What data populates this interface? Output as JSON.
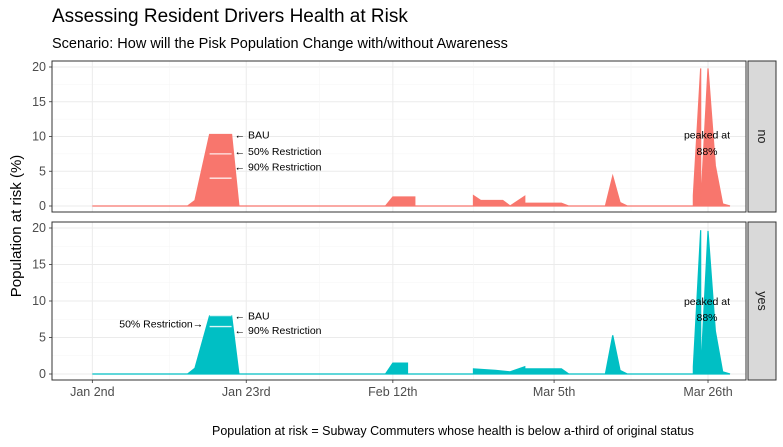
{
  "chart_data": {
    "type": "area",
    "title": "Assessing Resident Drivers Health at Risk",
    "subtitle": "Scenario: How will the Pisk Population Change with/without Awareness",
    "ylabel": "Population at risk (%)",
    "caption": "Population at risk = Subway Commuters whose health is below a-third of original status",
    "x_ticks": [
      "Jan 2nd",
      "Jan 23rd",
      "Feb 12th",
      "Mar 5th",
      "Mar 26th"
    ],
    "y_ticks": [
      "0",
      "5",
      "10",
      "15",
      "20"
    ],
    "ylim": [
      0,
      20
    ],
    "xlim": [
      "Jan 2nd",
      "Mar 29th"
    ],
    "grid": true,
    "facet_by": "awareness",
    "panels": [
      {
        "strip_label": "no",
        "color": "#F8766D",
        "series": [
          {
            "scenario": "BAU",
            "points": [
              [
                "Jan 2nd",
                0
              ],
              [
                "Jan 15th",
                0
              ],
              [
                "Jan 16th",
                0.8
              ],
              [
                "Jan 18th",
                10.3
              ],
              [
                "Jan 21st",
                10.3
              ],
              [
                "Jan 22nd",
                0
              ],
              [
                "Feb 11th",
                0
              ],
              [
                "Feb 12th",
                1.3
              ],
              [
                "Feb 15th",
                1.3
              ],
              [
                "Feb 15th",
                0
              ],
              [
                "Feb 23rd",
                0
              ],
              [
                "Feb 23rd",
                1.5
              ],
              [
                "Feb 24th",
                0.8
              ],
              [
                "Feb 27th",
                0.8
              ],
              [
                "Feb 28th",
                0
              ],
              [
                "Mar 1st",
                1.4
              ],
              [
                "Mar 1st",
                0.4
              ],
              [
                "Mar 6th",
                0.4
              ],
              [
                "Mar 7th",
                0
              ],
              [
                "Mar 12th",
                0
              ],
              [
                "Mar 13th",
                4.3
              ],
              [
                "Mar 14th",
                0.5
              ],
              [
                "Mar 15th",
                0
              ],
              [
                "Mar 24th",
                0
              ],
              [
                "Mar 24th",
                1.5
              ],
              [
                "Mar 25th",
                19.8
              ],
              [
                "Mar 25th",
                0
              ],
              [
                "Mar 26th",
                19.8
              ],
              [
                "Mar 27th",
                5.8
              ],
              [
                "Mar 28th",
                0.3
              ],
              [
                "Mar 29th",
                0
              ]
            ]
          },
          {
            "scenario": "50% Restriction",
            "points": [
              [
                "Jan 18th",
                7.5
              ],
              [
                "Jan 21st",
                7.5
              ]
            ]
          },
          {
            "scenario": "90% Restriction",
            "points": [
              [
                "Jan 18th",
                4.0
              ],
              [
                "Jan 21st",
                4.0
              ]
            ]
          }
        ],
        "annotations": [
          "← BAU",
          "← 50% Restriction",
          "← 90% Restriction"
        ],
        "peak_note": [
          "peaked at",
          "88%"
        ]
      },
      {
        "strip_label": "yes",
        "color": "#00BFC4",
        "series": [
          {
            "scenario": "BAU",
            "points": [
              [
                "Jan 2nd",
                0
              ],
              [
                "Jan 15th",
                0
              ],
              [
                "Jan 16th",
                0.8
              ],
              [
                "Jan 18th",
                8.0
              ],
              [
                "Jan 21st",
                8.0
              ],
              [
                "Jan 22nd",
                0
              ],
              [
                "Feb 11th",
                0
              ],
              [
                "Feb 12th",
                1.5
              ],
              [
                "Feb 14th",
                1.5
              ],
              [
                "Feb 14th",
                0
              ],
              [
                "Feb 23rd",
                0
              ],
              [
                "Feb 23rd",
                0.7
              ],
              [
                "Feb 26th",
                0.5
              ],
              [
                "Feb 28th",
                0.3
              ],
              [
                "Mar 1st",
                1.0
              ],
              [
                "Mar 1st",
                0.7
              ],
              [
                "Mar 6th",
                0.7
              ],
              [
                "Mar 7th",
                0
              ],
              [
                "Mar 12th",
                0
              ],
              [
                "Mar 13th",
                5.3
              ],
              [
                "Mar 14th",
                0.5
              ],
              [
                "Mar 15th",
                0
              ],
              [
                "Mar 24th",
                0
              ],
              [
                "Mar 24th",
                1.0
              ],
              [
                "Mar 25th",
                19.7
              ],
              [
                "Mar 25th",
                0
              ],
              [
                "Mar 26th",
                19.6
              ],
              [
                "Mar 27th",
                5.9
              ],
              [
                "Mar 28th",
                0.3
              ],
              [
                "Mar 29th",
                0
              ]
            ]
          },
          {
            "scenario": "50% Restriction",
            "points": [
              [
                "Jan 18th",
                8.0
              ],
              [
                "Jan 21st",
                8.0
              ]
            ]
          },
          {
            "scenario": "90% Restriction",
            "points": [
              [
                "Jan 18th",
                6.5
              ],
              [
                "Jan 21st",
                6.5
              ]
            ]
          }
        ],
        "annotations_right": [
          "← BAU",
          "← 90% Restriction"
        ],
        "annotation_left": "50% Restriction→",
        "peak_note": [
          "peaked at",
          "88%"
        ]
      }
    ]
  }
}
